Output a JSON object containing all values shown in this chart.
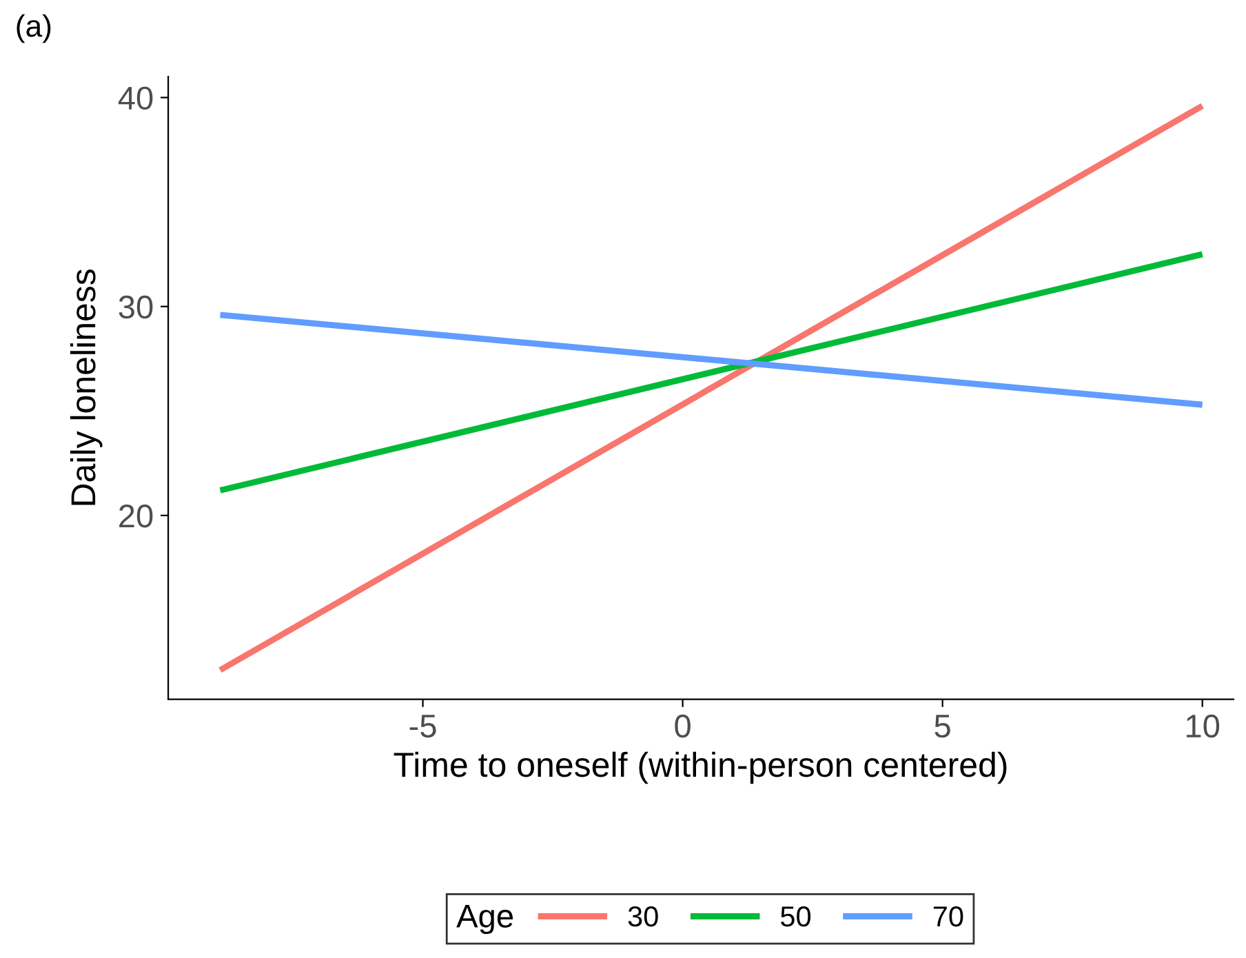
{
  "chart_data": {
    "type": "line",
    "xlabel": "Time to oneself (within-person centered)",
    "ylabel": "Daily loneliness",
    "legend_title": "Age",
    "annotations": [
      "(a)"
    ],
    "x": [
      -8.9,
      10
    ],
    "series": [
      {
        "name": "30",
        "color": "#f8766d",
        "values": [
          12.6,
          39.6
        ]
      },
      {
        "name": "50",
        "color": "#00ba38",
        "values": [
          21.2,
          32.5
        ]
      },
      {
        "name": "70",
        "color": "#619cff",
        "values": [
          29.6,
          25.3
        ]
      }
    ],
    "xlim": [
      -9.9,
      10.6
    ],
    "ylim": [
      11.2,
      41
    ],
    "xticks": [
      -5,
      0,
      5,
      10
    ],
    "yticks": [
      20,
      30,
      40
    ],
    "grid": false,
    "legend": "bottom",
    "marker": "none",
    "line_style": "solid"
  }
}
